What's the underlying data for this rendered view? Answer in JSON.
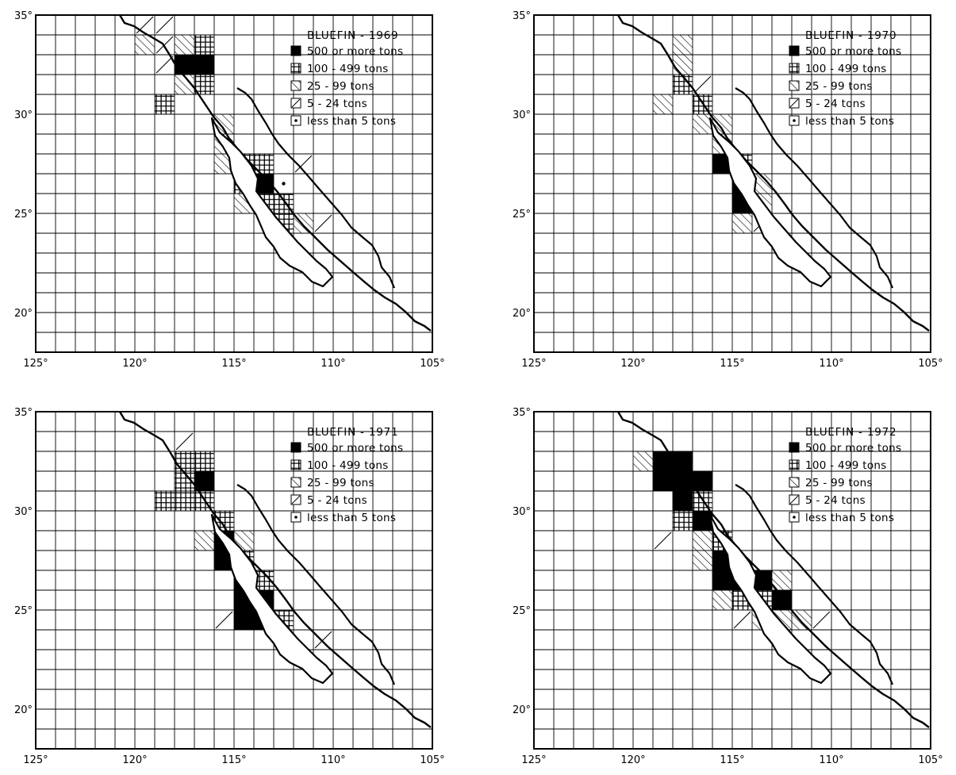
{
  "axis": {
    "lat_labels": [
      "35°",
      "30°",
      "25°",
      "20°"
    ],
    "lon_labels": [
      "125°",
      "120°",
      "115°",
      "110°",
      "105°"
    ]
  },
  "legend_items": [
    {
      "label": "500 or more tons",
      "pattern": "solid"
    },
    {
      "label": "100 - 499 tons",
      "pattern": "grid"
    },
    {
      "label": "25 - 99 tons",
      "pattern": "dense-hatch"
    },
    {
      "label": "5 - 24 tons",
      "pattern": "single-hatch"
    },
    {
      "label": "less than 5 tons",
      "pattern": "dot"
    }
  ],
  "panels": [
    {
      "title": "BLUEFIN - 1969",
      "cells": [
        {
          "lon": -120,
          "lat": 34,
          "c": "h"
        },
        {
          "lon": -119,
          "lat": 34,
          "c": "s"
        },
        {
          "lon": -120,
          "lat": 33,
          "c": "d"
        },
        {
          "lon": -119,
          "lat": 33,
          "c": "s"
        },
        {
          "lon": -118,
          "lat": 33,
          "c": "d"
        },
        {
          "lon": -117,
          "lat": 33,
          "c": "g"
        },
        {
          "lon": -119,
          "lat": 32,
          "c": "s"
        },
        {
          "lon": -118,
          "lat": 32,
          "c": "b"
        },
        {
          "lon": -117,
          "lat": 32,
          "c": "b"
        },
        {
          "lon": -118,
          "lat": 31,
          "c": "d"
        },
        {
          "lon": -117,
          "lat": 31,
          "c": "g"
        },
        {
          "lon": -119,
          "lat": 30,
          "c": "g"
        },
        {
          "lon": -116,
          "lat": 29,
          "c": "d"
        },
        {
          "lon": -116,
          "lat": 28,
          "c": "d"
        },
        {
          "lon": -116,
          "lat": 27,
          "c": "d"
        },
        {
          "lon": -115,
          "lat": 27,
          "c": "g"
        },
        {
          "lon": -114,
          "lat": 27,
          "c": "g"
        },
        {
          "lon": -112,
          "lat": 27,
          "c": "s"
        },
        {
          "lon": -115,
          "lat": 26,
          "c": "g"
        },
        {
          "lon": -114,
          "lat": 26,
          "c": "b"
        },
        {
          "lon": -113,
          "lat": 26,
          "c": "p"
        },
        {
          "lon": -115,
          "lat": 25,
          "c": "d"
        },
        {
          "lon": -114,
          "lat": 25,
          "c": "g"
        },
        {
          "lon": -113,
          "lat": 25,
          "c": "g"
        },
        {
          "lon": -113,
          "lat": 24,
          "c": "g"
        },
        {
          "lon": -112,
          "lat": 24,
          "c": "d"
        },
        {
          "lon": -111,
          "lat": 24,
          "c": "s"
        }
      ]
    },
    {
      "title": "BLUEFIN - 1970",
      "cells": [
        {
          "lon": -118,
          "lat": 33,
          "c": "d"
        },
        {
          "lon": -118,
          "lat": 32,
          "c": "d"
        },
        {
          "lon": -118,
          "lat": 31,
          "c": "g"
        },
        {
          "lon": -117,
          "lat": 31,
          "c": "s"
        },
        {
          "lon": -119,
          "lat": 30,
          "c": "d"
        },
        {
          "lon": -117,
          "lat": 30,
          "c": "g"
        },
        {
          "lon": -117,
          "lat": 29,
          "c": "d"
        },
        {
          "lon": -116,
          "lat": 29,
          "c": "d"
        },
        {
          "lon": -116,
          "lat": 28,
          "c": "d"
        },
        {
          "lon": -116,
          "lat": 27,
          "c": "b"
        },
        {
          "lon": -115,
          "lat": 27,
          "c": "g"
        },
        {
          "lon": -115,
          "lat": 26,
          "c": "b"
        },
        {
          "lon": -114,
          "lat": 26,
          "c": "d"
        },
        {
          "lon": -115,
          "lat": 25,
          "c": "b"
        },
        {
          "lon": -114,
          "lat": 25,
          "c": "d"
        },
        {
          "lon": -115,
          "lat": 24,
          "c": "d"
        },
        {
          "lon": -114,
          "lat": 24,
          "c": "s"
        }
      ]
    },
    {
      "title": "BLUEFIN - 1971",
      "cells": [
        {
          "lon": -118,
          "lat": 33,
          "c": "s"
        },
        {
          "lon": -118,
          "lat": 32,
          "c": "g"
        },
        {
          "lon": -117,
          "lat": 32,
          "c": "g"
        },
        {
          "lon": -118,
          "lat": 31,
          "c": "g"
        },
        {
          "lon": -117,
          "lat": 31,
          "c": "b"
        },
        {
          "lon": -119,
          "lat": 30,
          "c": "g"
        },
        {
          "lon": -118,
          "lat": 30,
          "c": "g"
        },
        {
          "lon": -117,
          "lat": 30,
          "c": "g"
        },
        {
          "lon": -116,
          "lat": 29,
          "c": "g"
        },
        {
          "lon": -117,
          "lat": 28,
          "c": "d"
        },
        {
          "lon": -116,
          "lat": 28,
          "c": "b"
        },
        {
          "lon": -115,
          "lat": 28,
          "c": "d"
        },
        {
          "lon": -116,
          "lat": 27,
          "c": "b"
        },
        {
          "lon": -115,
          "lat": 27,
          "c": "g"
        },
        {
          "lon": -115,
          "lat": 26,
          "c": "b"
        },
        {
          "lon": -114,
          "lat": 26,
          "c": "g"
        },
        {
          "lon": -115,
          "lat": 25,
          "c": "b"
        },
        {
          "lon": -114,
          "lat": 25,
          "c": "b"
        },
        {
          "lon": -116,
          "lat": 24,
          "c": "s"
        },
        {
          "lon": -115,
          "lat": 24,
          "c": "b"
        },
        {
          "lon": -114,
          "lat": 24,
          "c": "b"
        },
        {
          "lon": -113,
          "lat": 24,
          "c": "g"
        },
        {
          "lon": -113,
          "lat": 23,
          "c": "d"
        },
        {
          "lon": -111,
          "lat": 23,
          "c": "s"
        }
      ]
    },
    {
      "title": "BLUEFIN - 1972",
      "cells": [
        {
          "lon": -120,
          "lat": 32,
          "c": "d"
        },
        {
          "lon": -119,
          "lat": 32,
          "c": "b"
        },
        {
          "lon": -118,
          "lat": 32,
          "c": "b"
        },
        {
          "lon": -119,
          "lat": 31,
          "c": "b"
        },
        {
          "lon": -118,
          "lat": 31,
          "c": "b"
        },
        {
          "lon": -117,
          "lat": 31,
          "c": "b"
        },
        {
          "lon": -118,
          "lat": 30,
          "c": "b"
        },
        {
          "lon": -117,
          "lat": 30,
          "c": "g"
        },
        {
          "lon": -118,
          "lat": 29,
          "c": "g"
        },
        {
          "lon": -117,
          "lat": 29,
          "c": "b"
        },
        {
          "lon": -119,
          "lat": 28,
          "c": "s"
        },
        {
          "lon": -117,
          "lat": 28,
          "c": "d"
        },
        {
          "lon": -116,
          "lat": 28,
          "c": "g"
        },
        {
          "lon": -117,
          "lat": 27,
          "c": "d"
        },
        {
          "lon": -116,
          "lat": 27,
          "c": "b"
        },
        {
          "lon": -116,
          "lat": 26,
          "c": "b"
        },
        {
          "lon": -115,
          "lat": 26,
          "c": "b"
        },
        {
          "lon": -114,
          "lat": 26,
          "c": "b"
        },
        {
          "lon": -113,
          "lat": 26,
          "c": "d"
        },
        {
          "lon": -116,
          "lat": 25,
          "c": "d"
        },
        {
          "lon": -115,
          "lat": 25,
          "c": "g"
        },
        {
          "lon": -114,
          "lat": 25,
          "c": "g"
        },
        {
          "lon": -113,
          "lat": 25,
          "c": "b"
        },
        {
          "lon": -115,
          "lat": 24,
          "c": "s"
        },
        {
          "lon": -114,
          "lat": 24,
          "c": "d"
        },
        {
          "lon": -113,
          "lat": 24,
          "c": "d"
        },
        {
          "lon": -112,
          "lat": 24,
          "c": "d"
        },
        {
          "lon": -111,
          "lat": 24,
          "c": "s"
        }
      ]
    }
  ]
}
